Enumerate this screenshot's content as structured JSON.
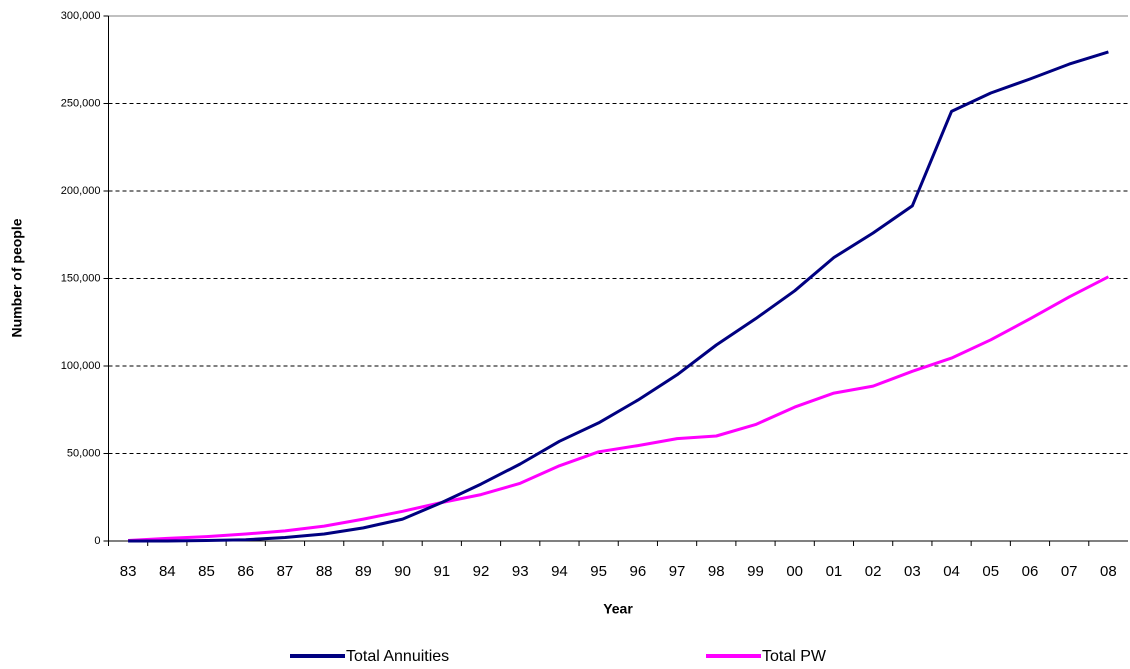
{
  "chart_data": {
    "type": "line",
    "x_label": "Year",
    "y_label": "Number of people",
    "categories": [
      "83",
      "84",
      "85",
      "86",
      "87",
      "88",
      "89",
      "90",
      "91",
      "92",
      "93",
      "94",
      "95",
      "96",
      "97",
      "98",
      "99",
      "00",
      "01",
      "02",
      "03",
      "04",
      "05",
      "06",
      "07",
      "08"
    ],
    "series": [
      {
        "name": "Total Annuities",
        "color": "#000080",
        "values": [
          0,
          0,
          300,
          700,
          2000,
          4000,
          7500,
          12500,
          22000,
          32500,
          44000,
          57000,
          67500,
          80500,
          95000,
          112000,
          127000,
          143000,
          162000,
          176000,
          191500,
          245500,
          256000,
          264000,
          272500,
          279500
        ]
      },
      {
        "name": "Total PW",
        "color": "#ff00ff",
        "values": [
          300,
          1500,
          2500,
          4000,
          5800,
          8500,
          12500,
          17000,
          22000,
          26500,
          33000,
          43000,
          51000,
          54500,
          58500,
          60000,
          66500,
          76500,
          84500,
          88500,
          97000,
          104500,
          115000,
          127000,
          139500,
          151000
        ]
      }
    ],
    "ylim": [
      0,
      300000
    ],
    "yticks": [
      0,
      {
        "value": 50000,
        "label": "50,000"
      },
      {
        "value": 100000,
        "label": "100,000"
      },
      {
        "value": 150000,
        "label": "150,000"
      },
      {
        "value": 200000,
        "label": "200,000"
      },
      {
        "value": 250000,
        "label": "250,000"
      },
      {
        "value": 300000,
        "label": "300,000"
      }
    ],
    "grid": true,
    "legend": "bottom"
  }
}
